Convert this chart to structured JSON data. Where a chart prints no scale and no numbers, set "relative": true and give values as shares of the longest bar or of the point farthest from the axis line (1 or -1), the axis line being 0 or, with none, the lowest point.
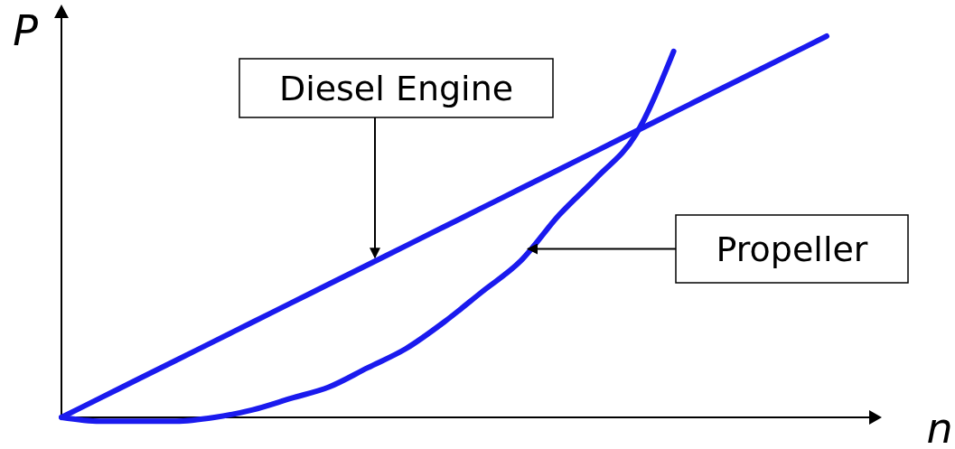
{
  "chart_data": {
    "type": "line",
    "relative": true,
    "xlabel": "n",
    "ylabel": "P",
    "categories": [
      null,
      null,
      null,
      null,
      null,
      null,
      null,
      null,
      null,
      null,
      null,
      null,
      null,
      null,
      null,
      null,
      null,
      null,
      null,
      null,
      null
    ],
    "series": [
      {
        "name": "Diesel Engine",
        "color": "#1a1aee",
        "values": [
          0,
          0.05,
          0.1,
          0.15,
          0.2,
          0.25,
          0.3,
          0.35,
          0.4,
          0.45,
          0.5,
          0.55,
          0.6,
          0.65,
          0.7,
          0.75,
          0.8,
          0.85,
          0.9,
          0.95,
          1
        ]
      },
      {
        "name": "Propeller",
        "color": "#1a1aee",
        "values": [
          0,
          -0.01,
          -0.01,
          -0.01,
          0,
          0.02,
          0.05,
          0.08,
          0.13,
          0.18,
          0.25,
          0.33,
          0.41,
          0.53,
          0.63,
          0.74,
          0.96,
          null,
          null,
          null,
          null
        ]
      }
    ],
    "marker": "none",
    "line_style": "solid"
  }
}
